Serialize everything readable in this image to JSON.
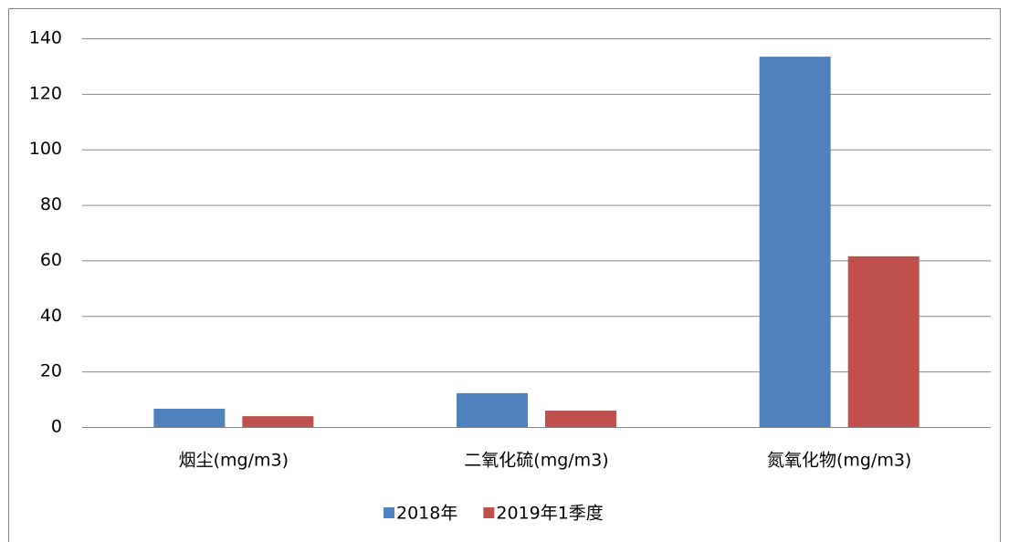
{
  "chart_data": {
    "type": "bar",
    "categories": [
      "烟尘(mg/m3)",
      "二氧化硫(mg/m3)",
      "氮氧化物(mg/m3)"
    ],
    "series": [
      {
        "name": "2018年",
        "color": "#4f81bd",
        "values": [
          6.6,
          12.2,
          133.4
        ]
      },
      {
        "name": "2019年1季度",
        "color": "#c0504d",
        "values": [
          3.9,
          5.9,
          61.5
        ]
      }
    ],
    "ylim": [
      0,
      140
    ],
    "yticks": [
      0,
      20,
      40,
      60,
      80,
      100,
      120,
      140
    ],
    "grid": true,
    "legend": "bottom"
  }
}
